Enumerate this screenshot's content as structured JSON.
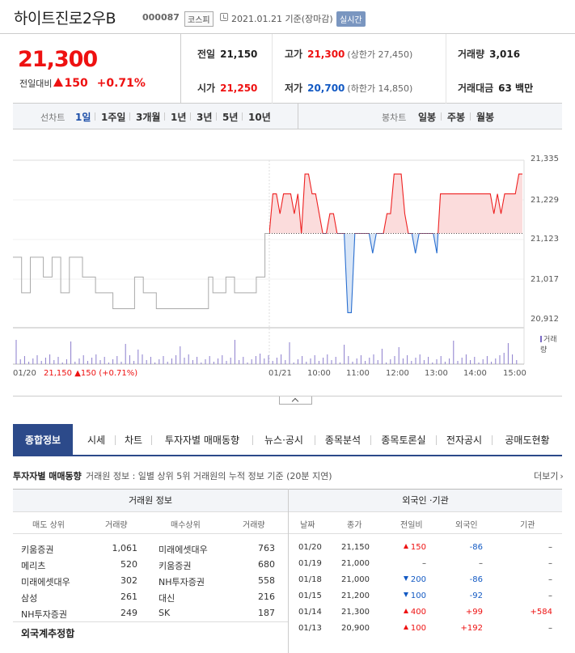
{
  "header": {
    "name": "하이트진로2우B",
    "code": "000087",
    "market": "코스피",
    "date": "2021.01.21 기준(장마감)",
    "realtime": "실시간"
  },
  "price": {
    "current": "21,300",
    "change_label": "전일대비",
    "change": "150",
    "change_pct": "+0.71%"
  },
  "summary": {
    "prev_close": {
      "label": "전일",
      "value": "21,150"
    },
    "open": {
      "label": "시가",
      "value": "21,250"
    },
    "high": {
      "label": "고가",
      "value": "21,300",
      "limit": "(상한가 27,450)"
    },
    "low": {
      "label": "저가",
      "value": "20,700",
      "limit": "(하한가 14,850)"
    },
    "volume": {
      "label": "거래량",
      "value": "3,016"
    },
    "amount": {
      "label": "거래대금",
      "value": "63 백만"
    }
  },
  "period_bar": {
    "line_label": "선차트",
    "line_tabs": [
      "1일",
      "1주일",
      "3개월",
      "1년",
      "3년",
      "5년",
      "10년"
    ],
    "active": "1일",
    "candle_label": "봉차트",
    "candle_tabs": [
      "일봉",
      "주봉",
      "월봉"
    ]
  },
  "chart_data": {
    "type": "line",
    "baseline": 21150,
    "ylim": [
      20912,
      21335
    ],
    "y_ticks": [
      "21,335",
      "21,229",
      "21,123",
      "21,017",
      "20,912"
    ],
    "x_ticks": [
      "01/21",
      "10:00",
      "11:00",
      "12:00",
      "13:00",
      "14:00",
      "15:00"
    ],
    "prev_day_label": "01/20",
    "prev_day_close": "21,150",
    "prev_day_change": "150",
    "prev_day_pct": "(+0.71%)",
    "volume_legend": "거래량",
    "prev_day_series": [
      21090,
      21090,
      21000,
      21000,
      21090,
      21090,
      21090,
      21040,
      21040,
      21090,
      21090,
      21000,
      21000,
      21090,
      21090,
      21090,
      21040,
      21040,
      21040,
      21000,
      21000,
      21000,
      21000,
      20960,
      20960,
      20960,
      20960,
      20960,
      21040,
      21040,
      21000,
      21000,
      21000,
      20960,
      20960,
      20960,
      20960,
      20960,
      20960,
      20960,
      20960,
      20960,
      20960,
      20960,
      20960,
      21040,
      21000,
      21000,
      21000,
      21040,
      21040,
      21000,
      21000,
      21000,
      21000,
      21000,
      21040,
      21040,
      21150,
      21150
    ],
    "today_series": [
      21150,
      21250,
      21250,
      21200,
      21250,
      21250,
      21250,
      21200,
      21250,
      21150,
      21300,
      21300,
      21250,
      21250,
      21200,
      21150,
      21150,
      21200,
      21200,
      21150,
      21150,
      21150,
      20950,
      20950,
      21150,
      21150,
      21150,
      21150,
      21150,
      21100,
      21150,
      21150,
      21150,
      21200,
      21200,
      21300,
      21300,
      21300,
      21200,
      21150,
      21150,
      21100,
      21150,
      21150,
      21150,
      21150,
      21150,
      21100,
      21250,
      21250,
      21250,
      21250,
      21250,
      21250,
      21250,
      21250,
      21250,
      21250,
      21250,
      21250,
      21250,
      21250,
      21250,
      21200,
      21250,
      21200,
      21250,
      21250,
      21250,
      21250,
      21300,
      21300
    ]
  },
  "main_tabs": [
    "종합정보",
    "시세",
    "차트",
    "투자자별 매매동향",
    "뉴스·공시",
    "종목분석",
    "종목토론실",
    "전자공시",
    "공매도현황"
  ],
  "section": {
    "title": "투자자별 매매동향",
    "desc": "거래원 정보 : 일별 상위 5위 거래원의 누적 정보 기준 (20분 지연)",
    "more": "더보기"
  },
  "broker_table": {
    "title": "거래원 정보",
    "headers": [
      "매도 상위",
      "거래량",
      "매수상위",
      "거래량"
    ],
    "rows": [
      {
        "sell": "키움증권",
        "sell_vol": "1,061",
        "buy": "미래에셋대우",
        "buy_vol": "763"
      },
      {
        "sell": "메리츠",
        "sell_vol": "520",
        "buy": "키움증권",
        "buy_vol": "680"
      },
      {
        "sell": "미래에셋대우",
        "sell_vol": "302",
        "buy": "NH투자증권",
        "buy_vol": "558"
      },
      {
        "sell": "삼성",
        "sell_vol": "261",
        "buy": "대신",
        "buy_vol": "216"
      },
      {
        "sell": "NH투자증권",
        "sell_vol": "249",
        "buy": "SK",
        "buy_vol": "187"
      }
    ],
    "foreign_total": "외국계추정합"
  },
  "foreign_table": {
    "title": "외국인 ·기관",
    "headers": [
      "날짜",
      "종가",
      "전일비",
      "외국인",
      "기관"
    ],
    "rows": [
      {
        "date": "01/20",
        "close": "21,150",
        "dir": "up",
        "diff": "150",
        "foreign": "-86",
        "inst": "–"
      },
      {
        "date": "01/19",
        "close": "21,000",
        "dir": "none",
        "diff": "–",
        "foreign": "–",
        "inst": "–"
      },
      {
        "date": "01/18",
        "close": "21,000",
        "dir": "down",
        "diff": "200",
        "foreign": "-86",
        "inst": "–"
      },
      {
        "date": "01/15",
        "close": "21,200",
        "dir": "down",
        "diff": "100",
        "foreign": "-92",
        "inst": "–"
      },
      {
        "date": "01/14",
        "close": "21,300",
        "dir": "up",
        "diff": "400",
        "foreign": "+99",
        "inst": "+584"
      },
      {
        "date": "01/13",
        "close": "20,900",
        "dir": "up",
        "diff": "100",
        "foreign": "+192",
        "inst": "–"
      }
    ]
  },
  "colors": {
    "up": "#e11111",
    "down": "#1259c3",
    "tab_active": "#2c4a8a"
  }
}
